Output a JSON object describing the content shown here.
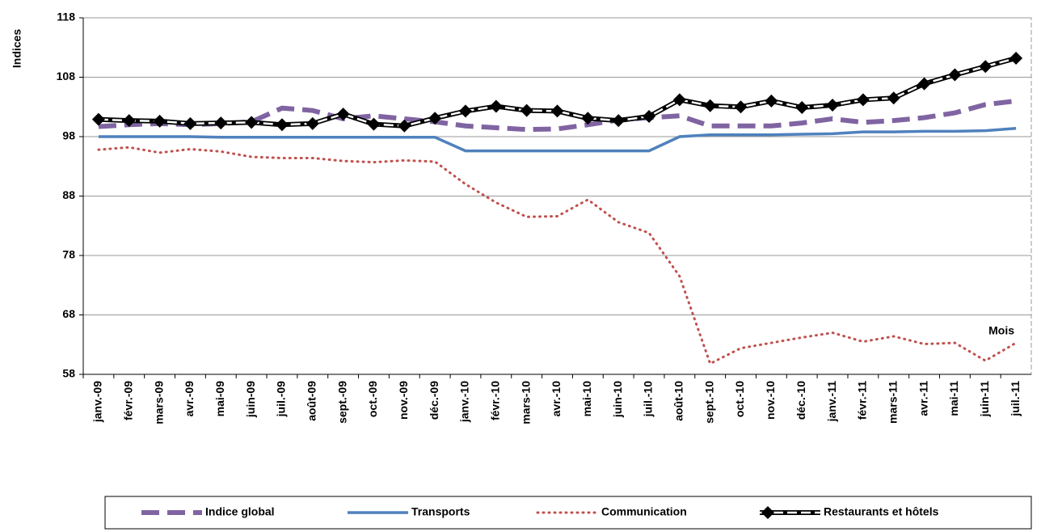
{
  "chart_data": {
    "type": "line",
    "y_label": "Indices",
    "x_label": "Mois",
    "categories": [
      "janv.-09",
      "févr.-09",
      "mars-09",
      "avr.-09",
      "mai-09",
      "juin-09",
      "juil.-09",
      "août-09",
      "sept.-09",
      "oct.-09",
      "nov.-09",
      "déc.-09",
      "janv.-10",
      "févr.-10",
      "mars-10",
      "avr.-10",
      "mai-10",
      "juin-10",
      "juil.-10",
      "août-10",
      "sept.-10",
      "oct.-10",
      "nov.-10",
      "déc.-10",
      "janv.-11",
      "févr.-11",
      "mars-11",
      "avr.-11",
      "mai-11",
      "juin-11",
      "juil.-11"
    ],
    "series": [
      {
        "name": "Indice global",
        "color": "#8064a2",
        "line_style": "dashed",
        "values": [
          99.7,
          100,
          100.2,
          100,
          100.2,
          100.5,
          102.8,
          102.4,
          101,
          101.5,
          101,
          100.5,
          99.8,
          99.5,
          99.2,
          99.3,
          100,
          100.8,
          101.2,
          101.5,
          99.8,
          99.8,
          99.8,
          100.3,
          101,
          100.4,
          100.7,
          101.2,
          102,
          103.4,
          104
        ]
      },
      {
        "name": "Transports",
        "color": "#4f81bd",
        "line_style": "solid",
        "values": [
          98,
          98,
          98,
          98,
          97.9,
          97.9,
          97.9,
          97.9,
          97.9,
          97.9,
          97.9,
          97.9,
          95.6,
          95.6,
          95.6,
          95.6,
          95.6,
          95.6,
          95.6,
          98,
          98.3,
          98.3,
          98.3,
          98.4,
          98.5,
          98.8,
          98.8,
          98.9,
          98.9,
          99,
          99.4
        ]
      },
      {
        "name": "Communication",
        "color": "#c0504d",
        "line_style": "dotted",
        "values": [
          95.8,
          96.2,
          95.3,
          95.9,
          95.5,
          94.6,
          94.4,
          94.4,
          93.9,
          93.7,
          94,
          93.8,
          90,
          86.9,
          84.5,
          84.6,
          87.4,
          83.6,
          81.8,
          74.5,
          59.8,
          62.4,
          63.3,
          64.2,
          65,
          63.5,
          64.4,
          63.1,
          63.3,
          60.3,
          63.3
        ]
      },
      {
        "name": "Restaurants et hôtels",
        "color": "#000000",
        "line_style": "double",
        "marker": "diamond",
        "values": [
          100.9,
          100.7,
          100.6,
          100.2,
          100.3,
          100.4,
          100,
          100.2,
          101.8,
          100.1,
          99.8,
          101.1,
          102.3,
          103.1,
          102.4,
          102.3,
          101.1,
          100.7,
          101.4,
          104.2,
          103.2,
          103,
          104,
          102.9,
          103.3,
          104.2,
          104.5,
          106.9,
          108.4,
          109.8,
          111.2
        ]
      }
    ],
    "ylim": [
      58,
      118
    ],
    "yticks": [
      58,
      68,
      78,
      88,
      98,
      108,
      118
    ],
    "grid": true,
    "legend": "bottom"
  }
}
